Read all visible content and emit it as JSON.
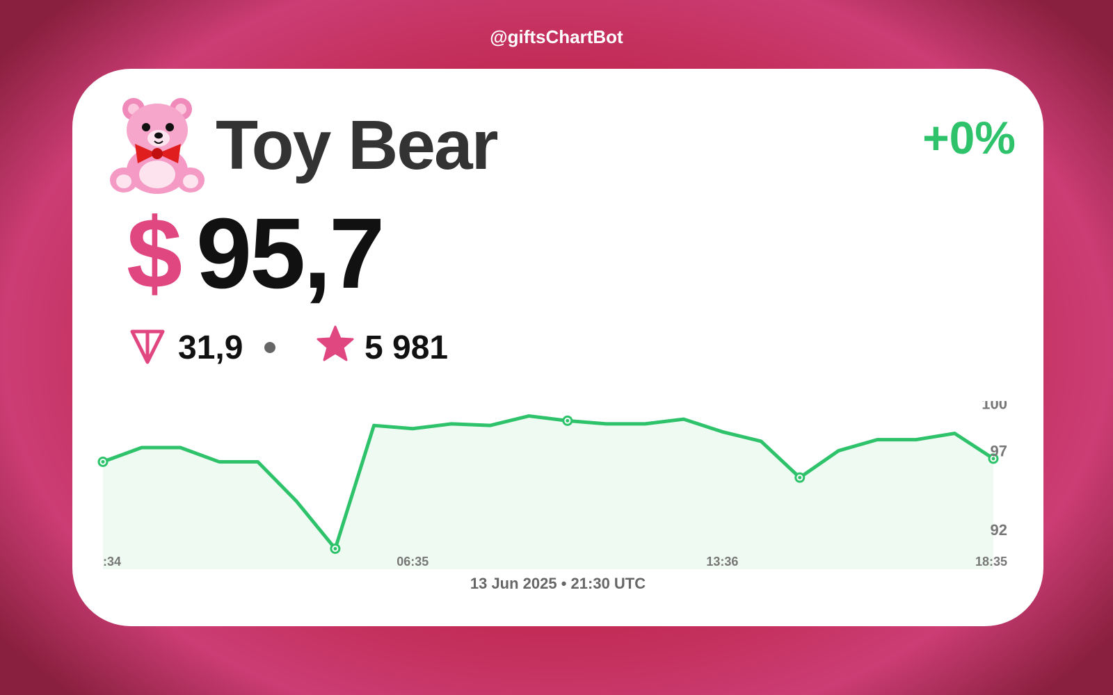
{
  "header": {
    "bot_handle": "@giftsChartBot"
  },
  "gift": {
    "name": "Toy Bear",
    "icon": "teddy-bear-icon",
    "change": "+0%",
    "currency_symbol": "$",
    "price": "95,7",
    "ton_icon": "ton-icon",
    "ton_price": "31,9",
    "star_icon": "star-icon",
    "stars_price": "5 981"
  },
  "colors": {
    "accent_pink": "#e0467f",
    "line_green": "#2ec36b",
    "fill_green": "#eefaf2"
  },
  "chart_data": {
    "type": "area",
    "x_tick_labels": [
      ":34",
      "06:35",
      "13:36",
      "18:35"
    ],
    "x_tick_index": [
      0,
      8,
      16,
      23
    ],
    "y_tick_labels": [
      "100",
      "97",
      "92"
    ],
    "y_tick_values": [
      100,
      97,
      92
    ],
    "values": [
      96.3,
      97.2,
      97.2,
      96.3,
      96.3,
      93.8,
      90.8,
      98.6,
      98.4,
      98.7,
      98.6,
      99.2,
      98.9,
      98.7,
      98.7,
      99.0,
      98.2,
      97.6,
      95.3,
      97.0,
      97.7,
      97.7,
      98.1,
      96.5
    ],
    "highlight_index": [
      0,
      6,
      12,
      18,
      23
    ],
    "ylim": [
      89.5,
      100.5
    ]
  },
  "footer": {
    "date": "13 Jun 2025 • 21:30 UTC"
  }
}
